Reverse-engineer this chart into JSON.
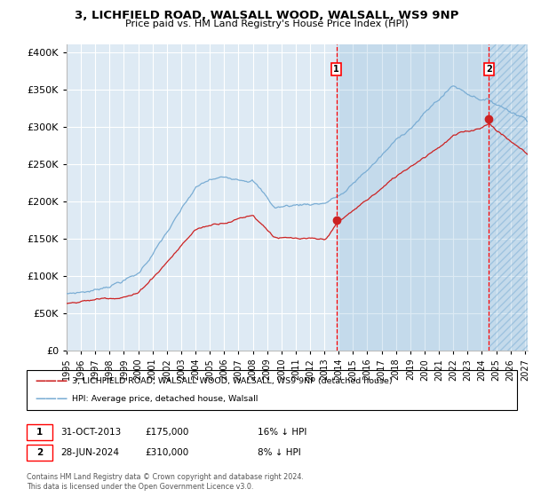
{
  "title": "3, LICHFIELD ROAD, WALSALL WOOD, WALSALL, WS9 9NP",
  "subtitle": "Price paid vs. HM Land Registry's House Price Index (HPI)",
  "ylim": [
    0,
    410000
  ],
  "yticks": [
    0,
    50000,
    100000,
    150000,
    200000,
    250000,
    300000,
    350000,
    400000
  ],
  "ytick_labels": [
    "£0",
    "£50K",
    "£100K",
    "£150K",
    "£200K",
    "£250K",
    "£300K",
    "£350K",
    "£400K"
  ],
  "hpi_color": "#7aadd4",
  "price_color": "#cc2222",
  "bg_color": "#deeaf4",
  "grid_color": "#ffffff",
  "sale1_date": "31-OCT-2013",
  "sale1_price": 175000,
  "sale1_hpi_pct": "16% ↓ HPI",
  "sale2_date": "28-JUN-2024",
  "sale2_price": 310000,
  "sale2_hpi_pct": "8% ↓ HPI",
  "legend_line1": "3, LICHFIELD ROAD, WALSALL WOOD, WALSALL, WS9 9NP (detached house)",
  "legend_line2": "HPI: Average price, detached house, Walsall",
  "footer": "Contains HM Land Registry data © Crown copyright and database right 2024.\nThis data is licensed under the Open Government Licence v3.0.",
  "xlim_start": 1995.0,
  "xlim_end": 2027.2,
  "sale1_x": 2013.83,
  "sale2_x": 2024.5
}
